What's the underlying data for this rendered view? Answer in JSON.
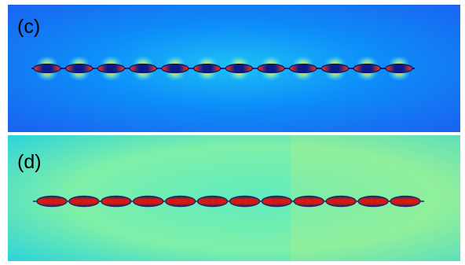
{
  "panels": [
    {
      "id": "c",
      "label": "(c)",
      "background_colors": [
        "#1a63f0",
        "#0d8ef8",
        "#1dc0f6"
      ],
      "chain_colors": {
        "core": "#0a1a8a",
        "hot": "#ff3a10",
        "glow": "#ffe040"
      },
      "element_count": 12
    },
    {
      "id": "d",
      "label": "(d)",
      "background_colors": [
        "#29d2dc",
        "#5fecc0",
        "#c2f078"
      ],
      "chain_colors": {
        "core": "#8a0f0f",
        "hot": "#d11a12",
        "edge": "#1a2a6a"
      },
      "element_count": 12
    }
  ]
}
